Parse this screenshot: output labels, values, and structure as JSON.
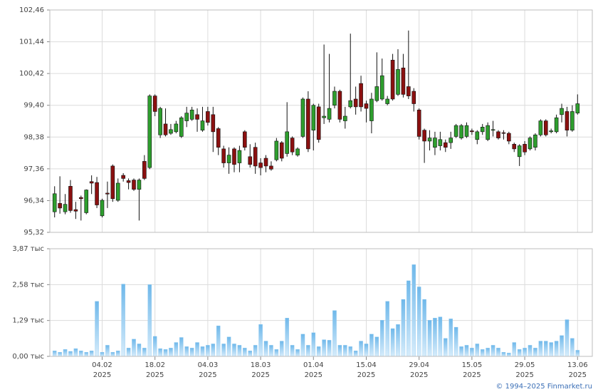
{
  "chart_data": [
    {
      "type": "candlestick",
      "open": [
        95.98,
        96.25,
        95.98,
        96.8,
        96.05,
        96.44,
        95.95,
        96.95,
        96.92,
        95.85,
        96.58,
        97.45,
        96.35,
        97.15,
        96.98,
        97.0,
        96.7,
        97.6,
        97.4,
        99.7,
        98.45,
        98.8,
        98.5,
        98.55,
        98.4,
        98.9,
        98.95,
        99.1,
        98.6,
        99.2,
        99.1,
        98.65,
        98.0,
        97.55,
        98.0,
        97.55,
        98.55,
        97.75,
        98.05,
        97.55,
        97.7,
        97.45,
        97.65,
        98.2,
        97.85,
        98.35,
        97.8,
        98.4,
        99.6,
        98.6,
        99.35,
        99.0,
        98.95,
        99.4,
        99.85,
        98.9,
        99.35,
        99.6,
        100.1,
        99.45,
        98.9,
        99.55,
        99.6,
        99.45,
        100.85,
        99.75,
        100.6,
        100.0,
        99.85,
        99.25,
        98.6,
        98.25,
        98.05,
        98.1,
        98.2,
        98.2,
        98.4,
        98.35,
        98.4,
        98.58,
        98.3,
        98.55,
        98.3,
        98.6,
        98.55,
        98.52,
        98.5,
        98.15,
        97.75,
        98.15,
        98.0,
        98.05,
        98.45,
        98.9,
        98.55,
        98.55,
        99.1,
        99.2,
        98.6,
        99.15
      ],
      "high": [
        96.8,
        97.12,
        96.55,
        97.0,
        96.3,
        96.5,
        96.7,
        97.15,
        97.1,
        96.4,
        96.95,
        97.5,
        97.05,
        97.22,
        97.05,
        97.05,
        97.05,
        97.8,
        99.75,
        99.75,
        99.35,
        99.3,
        98.8,
        98.9,
        99.05,
        99.35,
        99.35,
        99.3,
        99.35,
        99.35,
        99.35,
        98.7,
        98.1,
        98.05,
        98.05,
        98.1,
        98.6,
        98.15,
        98.2,
        97.7,
        97.8,
        97.6,
        98.35,
        98.25,
        99.5,
        98.4,
        98.05,
        99.65,
        99.85,
        99.45,
        99.45,
        101.35,
        101.05,
        100.0,
        99.9,
        99.35,
        101.7,
        100.0,
        100.35,
        99.55,
        99.8,
        101.1,
        100.9,
        99.7,
        101.05,
        101.2,
        101.05,
        101.8,
        99.95,
        99.3,
        98.65,
        98.6,
        98.55,
        98.55,
        98.3,
        98.55,
        98.8,
        98.8,
        98.85,
        98.65,
        98.6,
        98.8,
        98.85,
        98.9,
        98.6,
        98.6,
        98.55,
        98.2,
        98.15,
        98.25,
        98.4,
        98.5,
        98.95,
        98.95,
        98.65,
        99.1,
        99.45,
        99.35,
        99.4,
        99.75
      ],
      "low": [
        95.8,
        95.92,
        95.9,
        95.95,
        95.75,
        95.7,
        95.9,
        96.55,
        96.1,
        95.8,
        96.1,
        96.3,
        96.3,
        96.95,
        96.7,
        96.65,
        95.7,
        97.0,
        97.35,
        99.05,
        98.35,
        98.4,
        98.45,
        98.5,
        98.35,
        98.7,
        98.9,
        98.55,
        98.55,
        98.75,
        97.9,
        97.8,
        97.4,
        97.2,
        97.25,
        97.25,
        97.95,
        97.4,
        97.2,
        97.15,
        97.25,
        97.3,
        97.6,
        97.6,
        97.75,
        97.8,
        97.75,
        98.35,
        97.9,
        97.95,
        98.2,
        98.8,
        98.85,
        99.3,
        98.85,
        98.65,
        99.3,
        99.1,
        99.2,
        98.85,
        98.5,
        99.5,
        99.55,
        99.4,
        99.55,
        99.7,
        99.65,
        99.6,
        99.2,
        98.3,
        97.55,
        97.95,
        97.8,
        97.95,
        97.9,
        98.0,
        98.35,
        98.3,
        98.35,
        98.45,
        98.15,
        98.45,
        98.25,
        98.4,
        98.3,
        98.3,
        98.15,
        97.9,
        97.45,
        97.8,
        97.95,
        97.95,
        98.4,
        98.4,
        98.5,
        98.5,
        98.85,
        98.4,
        98.55,
        99.1
      ],
      "close": [
        96.56,
        96.1,
        96.22,
        96.02,
        96.0,
        96.4,
        96.68,
        96.9,
        96.2,
        96.35,
        96.55,
        96.4,
        96.9,
        97.05,
        96.92,
        96.7,
        97.0,
        97.05,
        99.7,
        99.2,
        99.3,
        98.45,
        98.62,
        98.8,
        99.0,
        99.15,
        99.25,
        98.95,
        98.9,
        98.85,
        98.55,
        98.05,
        97.55,
        97.8,
        97.5,
        97.95,
        98.05,
        97.5,
        97.45,
        97.4,
        97.45,
        97.35,
        98.25,
        97.7,
        98.55,
        97.9,
        98.0,
        99.6,
        98.0,
        99.4,
        98.3,
        99.05,
        99.3,
        99.85,
        98.95,
        99.05,
        99.55,
        99.35,
        99.35,
        99.3,
        99.6,
        100.0,
        100.35,
        99.6,
        99.6,
        100.55,
        99.75,
        99.7,
        99.45,
        98.4,
        98.25,
        98.35,
        98.35,
        98.3,
        98.05,
        98.35,
        98.75,
        98.75,
        98.75,
        98.55,
        98.55,
        98.7,
        98.75,
        98.62,
        98.35,
        98.5,
        98.25,
        98.0,
        98.1,
        97.9,
        98.35,
        98.45,
        98.9,
        98.45,
        98.58,
        99.0,
        99.3,
        98.6,
        99.2,
        99.45
      ],
      "up_color": "#2e9e2e",
      "down_color": "#8b1010",
      "ylim": [
        95.32,
        102.46
      ],
      "yticks": [
        {
          "value": 95.32,
          "label": "95,32"
        },
        {
          "value": 96.34,
          "label": "96,34"
        },
        {
          "value": 97.36,
          "label": "97,36"
        },
        {
          "value": 98.38,
          "label": "98,38"
        },
        {
          "value": 99.4,
          "label": "99,40"
        },
        {
          "value": 100.42,
          "label": "100,42"
        },
        {
          "value": 101.44,
          "label": "101,44"
        },
        {
          "value": 102.46,
          "label": "102,46"
        }
      ],
      "grid": true
    },
    {
      "type": "bar",
      "categories": [
        null,
        null,
        null,
        null,
        null,
        null,
        null,
        null,
        null,
        "04.02",
        null,
        null,
        null,
        null,
        null,
        null,
        null,
        null,
        null,
        "18.02",
        null,
        null,
        null,
        null,
        null,
        null,
        null,
        null,
        null,
        "04.03",
        null,
        null,
        null,
        null,
        null,
        null,
        null,
        null,
        null,
        "18.03",
        null,
        null,
        null,
        null,
        null,
        null,
        null,
        null,
        null,
        "01.04",
        null,
        null,
        null,
        null,
        null,
        null,
        null,
        null,
        null,
        "15.04",
        null,
        null,
        null,
        null,
        null,
        null,
        null,
        null,
        null,
        "29.04",
        null,
        null,
        null,
        null,
        null,
        null,
        null,
        null,
        null,
        "15.05",
        null,
        null,
        null,
        null,
        null,
        null,
        null,
        null,
        null,
        "29.05",
        null,
        null,
        null,
        null,
        null,
        null,
        null,
        null,
        null,
        "13.06"
      ],
      "x_sublabel": "2025",
      "values": [
        0.2,
        0.15,
        0.25,
        0.18,
        0.28,
        0.2,
        0.15,
        0.2,
        1.98,
        0.15,
        0.4,
        0.15,
        0.2,
        2.6,
        0.3,
        0.62,
        0.45,
        0.3,
        2.58,
        0.72,
        0.28,
        0.25,
        0.3,
        0.5,
        0.68,
        0.35,
        0.3,
        0.5,
        0.35,
        0.4,
        0.45,
        1.1,
        0.45,
        0.7,
        0.45,
        0.4,
        0.3,
        0.2,
        0.4,
        1.15,
        0.55,
        0.4,
        0.25,
        0.55,
        1.38,
        0.4,
        0.25,
        0.8,
        0.4,
        0.85,
        0.35,
        0.6,
        0.58,
        1.65,
        0.4,
        0.4,
        0.35,
        0.2,
        0.55,
        0.45,
        0.8,
        0.7,
        1.3,
        1.98,
        1.0,
        1.15,
        2.05,
        2.72,
        3.3,
        2.5,
        2.05,
        1.3,
        1.38,
        1.42,
        0.65,
        1.35,
        1.05,
        0.35,
        0.4,
        0.3,
        0.45,
        0.25,
        0.3,
        0.4,
        0.3,
        0.15,
        0.12,
        0.5,
        0.25,
        0.3,
        0.4,
        0.3,
        0.55,
        0.55,
        0.5,
        0.55,
        0.75,
        1.32,
        0.65,
        0.22
      ],
      "color": "#8ec9f0",
      "ylim": [
        0,
        3.87
      ],
      "yticks": [
        {
          "value": 0,
          "label": "0,00 тыс"
        },
        {
          "value": 1.29,
          "label": "1,29 тыс"
        },
        {
          "value": 2.58,
          "label": "2,58 тыс"
        },
        {
          "value": 3.87,
          "label": "3,87 тыс"
        }
      ],
      "grid": true
    }
  ],
  "footer": "© 1994–2025 Finmarket.ru"
}
